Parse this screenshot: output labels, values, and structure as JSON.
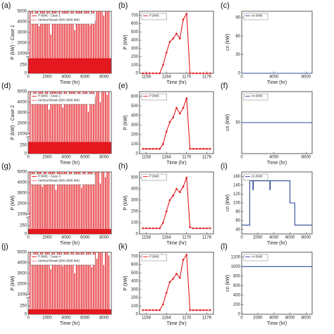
{
  "chart_data": [
    {
      "type": "spike",
      "label": "(a)",
      "xlabel": "Time (hr)",
      "ylabel": "P (kW) - Case 1",
      "legend_note": "Vertical Break (500-2900 kW)",
      "baseline": 450,
      "series": [
        {
          "name": "P (kW) - Case 1",
          "color": "#e3191f",
          "x": [
            200,
            420,
            610,
            800,
            980,
            1150,
            1320,
            1500,
            1680,
            1850,
            2020,
            2200,
            2380,
            2560,
            2740,
            2920,
            3100,
            3280,
            3460,
            3640,
            3820,
            4000,
            4180,
            4360,
            4540,
            4720,
            4900,
            5080,
            5260,
            5440,
            5620,
            5800,
            5980,
            6160,
            6340,
            6520,
            6700,
            6880,
            7060,
            7240,
            7420,
            7600,
            7780,
            7960,
            8140,
            8320,
            8500
          ],
          "values": [
            5000,
            5000,
            4200,
            5000,
            5000,
            3600,
            5000,
            5000,
            5000,
            4500,
            5000,
            5000,
            2800,
            5000,
            5000,
            5000,
            4800,
            5000,
            3900,
            5000,
            5000,
            5000,
            5000,
            4400,
            5000,
            5000,
            3200,
            5000,
            5000,
            5000,
            5000,
            4700,
            5000,
            5000,
            5000,
            3700,
            5000,
            5000,
            4100,
            5000,
            5000,
            5000,
            5000,
            4600,
            5000,
            5000,
            5000
          ]
        }
      ],
      "xlim": [
        0,
        8760
      ],
      "xticks": [
        0,
        2000,
        4000,
        6000,
        8000
      ],
      "ylim": [
        0,
        5000
      ],
      "y_break": [
        500,
        1000
      ],
      "yticks": [
        0,
        250,
        1000,
        2000,
        3000,
        4000,
        5000
      ]
    },
    {
      "type": "line",
      "label": "(b)",
      "xlabel": "Time (hr)",
      "ylabel": "P (kW)",
      "markers": true,
      "series": [
        {
          "name": "P (kW)",
          "color": "#e3191f",
          "x": [
            1157,
            1158,
            1159,
            1160,
            1161,
            1162,
            1163,
            1164,
            1165,
            1166,
            1167,
            1168,
            1169,
            1170,
            1171,
            1172,
            1173,
            1174,
            1175,
            1176,
            1177
          ],
          "values": [
            0,
            0,
            0,
            0,
            0,
            0,
            100,
            250,
            380,
            420,
            480,
            420,
            650,
            720,
            0,
            0,
            0,
            0,
            0,
            0,
            0
          ]
        }
      ],
      "xlim": [
        1156,
        1178
      ],
      "xticks": [
        1158,
        1164,
        1170,
        1176
      ],
      "ylim": [
        0,
        750
      ],
      "yticks": [
        0,
        100,
        200,
        300,
        400,
        500,
        600,
        700
      ]
    },
    {
      "type": "line",
      "label": "(c)",
      "xlabel": "Time (hr)",
      "ylabel": "cn (kW)",
      "series": [
        {
          "name": "cn (kW)",
          "color": "#2b4c9b",
          "x": [
            0,
            8760
          ],
          "values": [
            0,
            0
          ]
        }
      ],
      "xlim": [
        0,
        8760
      ],
      "xticks": [
        0,
        4000,
        8000
      ],
      "ylim": [
        0,
        100
      ],
      "yticks": [
        0,
        30,
        60,
        90
      ]
    },
    {
      "type": "spike",
      "label": "(d)",
      "xlabel": "Time (hr)",
      "ylabel": "P (kW) - Case 2",
      "legend_note": "Vertical Break (500-2900 kW)",
      "baseline": 350,
      "series": [
        {
          "name": "P (kW) - Case 2",
          "color": "#e3191f",
          "x": [
            200,
            420,
            610,
            800,
            980,
            1150,
            1320,
            1500,
            1680,
            1850,
            2020,
            2200,
            2380,
            2560,
            2740,
            2920,
            3100,
            3280,
            3460,
            3640,
            3820,
            4000,
            4180,
            4360,
            4540,
            4720,
            4900,
            5080,
            5260,
            5440,
            5620,
            5800,
            5980,
            6160,
            6340,
            6520,
            6700,
            6880,
            7060,
            7240,
            7420,
            7600,
            7780,
            7960,
            8140,
            8320,
            8500
          ],
          "values": [
            5000,
            4300,
            5000,
            5000,
            3800,
            5000,
            5000,
            5000,
            4600,
            5000,
            5000,
            3300,
            5000,
            5000,
            5000,
            5000,
            4900,
            5000,
            5000,
            3500,
            5000,
            5000,
            4200,
            5000,
            5000,
            5000,
            5000,
            3900,
            5000,
            5000,
            4800,
            5000,
            5000,
            5000,
            3100,
            5000,
            5000,
            5000,
            4500,
            5000,
            5000,
            4000,
            5000,
            5000,
            5000,
            4700,
            5000
          ]
        }
      ],
      "xlim": [
        0,
        8760
      ],
      "xticks": [
        0,
        2000,
        4000,
        6000,
        8000
      ],
      "ylim": [
        0,
        5000
      ],
      "y_break": [
        500,
        1000
      ],
      "yticks": [
        0,
        250,
        1000,
        2000,
        3000,
        4000,
        5000
      ]
    },
    {
      "type": "line",
      "label": "(e)",
      "xlabel": "Time (hr)",
      "ylabel": "P (kW)",
      "markers": true,
      "series": [
        {
          "name": "P (kW)",
          "color": "#e3191f",
          "x": [
            1157,
            1158,
            1159,
            1160,
            1161,
            1162,
            1163,
            1164,
            1165,
            1166,
            1167,
            1168,
            1169,
            1170,
            1171,
            1172,
            1173,
            1174,
            1175,
            1176,
            1177
          ],
          "values": [
            50,
            50,
            50,
            50,
            50,
            50,
            100,
            230,
            330,
            380,
            480,
            420,
            480,
            580,
            50,
            50,
            50,
            50,
            50,
            50,
            50
          ]
        }
      ],
      "xlim": [
        1156,
        1178
      ],
      "xticks": [
        1158,
        1164,
        1170,
        1176
      ],
      "ylim": [
        0,
        650
      ],
      "yticks": [
        0,
        100,
        200,
        300,
        400,
        500,
        600
      ]
    },
    {
      "type": "line",
      "label": "(f)",
      "xlabel": "Time (hr)",
      "ylabel": "cn (kW)",
      "series": [
        {
          "name": "cn (kW)",
          "color": "#2b4c9b",
          "x": [
            0,
            8760
          ],
          "values": [
            50,
            50
          ]
        }
      ],
      "xlim": [
        0,
        8760
      ],
      "xticks": [
        0,
        4000,
        8000
      ],
      "ylim": [
        0,
        100
      ],
      "yticks": [
        50
      ]
    },
    {
      "type": "spike",
      "label": "(g)",
      "xlabel": "Time (hr)",
      "ylabel": "P (kW)",
      "legend_note": "Vertical Break (500-2900 kW)",
      "baseline": 150,
      "series": [
        {
          "name": "P (kW) - Case 3",
          "color": "#e3191f",
          "x": [
            200,
            420,
            610,
            800,
            980,
            1150,
            1320,
            1500,
            1680,
            1850,
            2020,
            2200,
            2380,
            2560,
            2740,
            2920,
            3100,
            3280,
            3460,
            3640,
            3820,
            4000,
            4180,
            4360,
            4540,
            4720,
            4900,
            5080,
            5260,
            5440,
            5620,
            5800,
            5980,
            6160,
            6340,
            6520,
            6700,
            6880,
            7060,
            7240,
            7420,
            7600,
            7780,
            7960,
            8140,
            8320,
            8500
          ],
          "values": [
            5000,
            5000,
            5000,
            4100,
            5000,
            5000,
            5000,
            3600,
            5000,
            5000,
            4600,
            5000,
            5000,
            5000,
            5000,
            3300,
            5000,
            5000,
            5000,
            4900,
            5000,
            5000,
            3800,
            5000,
            5000,
            4400,
            5000,
            5000,
            5000,
            5000,
            3500,
            5000,
            5000,
            4700,
            5000,
            5000,
            5000,
            4200,
            5000,
            5000,
            5000,
            3900,
            5000,
            5000,
            4500,
            5000,
            5000
          ]
        }
      ],
      "xlim": [
        0,
        8760
      ],
      "xticks": [
        0,
        2000,
        4000,
        6000,
        8000
      ],
      "ylim": [
        0,
        5000
      ],
      "y_break": [
        500,
        1000
      ],
      "yticks": [
        0,
        250,
        1000,
        2000,
        3000,
        4000,
        5000
      ]
    },
    {
      "type": "line",
      "label": "(h)",
      "xlabel": "Time (hr)",
      "ylabel": "P (kW)",
      "markers": true,
      "series": [
        {
          "name": "P (kW)",
          "color": "#e3191f",
          "x": [
            1157,
            1158,
            1159,
            1160,
            1161,
            1162,
            1163,
            1164,
            1165,
            1166,
            1167,
            1168,
            1169,
            1170,
            1171,
            1172,
            1173,
            1174,
            1175,
            1176,
            1177
          ],
          "values": [
            50,
            50,
            50,
            50,
            50,
            50,
            100,
            200,
            300,
            340,
            400,
            370,
            420,
            500,
            60,
            50,
            50,
            50,
            50,
            50,
            50
          ]
        }
      ],
      "xlim": [
        1156,
        1178
      ],
      "xticks": [
        1158,
        1164,
        1170,
        1176
      ],
      "ylim": [
        0,
        550
      ],
      "yticks": [
        0,
        100,
        200,
        300,
        400,
        500
      ]
    },
    {
      "type": "line",
      "label": "(i)",
      "xlabel": "Time (hr)",
      "ylabel": "cn (kW)",
      "series": [
        {
          "name": "cn (kW)",
          "color": "#2b4c9b",
          "x": [
            0,
            1000,
            1000,
            1400,
            1400,
            1450,
            1450,
            3500,
            3500,
            3550,
            3550,
            6000,
            6000,
            6600,
            6600,
            8760
          ],
          "values": [
            50,
            50,
            150,
            150,
            130,
            130,
            150,
            150,
            130,
            130,
            150,
            150,
            100,
            100,
            50,
            50
          ]
        }
      ],
      "xlim": [
        0,
        8760
      ],
      "xticks": [
        0,
        2000,
        4000,
        6000,
        8000
      ],
      "ylim": [
        30,
        170
      ],
      "yticks": [
        40,
        60,
        80,
        100,
        120,
        140,
        160
      ]
    },
    {
      "type": "spike",
      "label": "(j)",
      "xlabel": "Time (hr)",
      "ylabel": "P (kW)",
      "legend_note": "Vertical Break (500-2900 kW)",
      "baseline": 150,
      "series": [
        {
          "name": "P (kW) - Case 4",
          "color": "#e3191f",
          "x": [
            200,
            420,
            610,
            800,
            980,
            1150,
            1320,
            1500,
            1680,
            1850,
            2020,
            2200,
            2380,
            2560,
            2740,
            2920,
            3100,
            3280,
            3460,
            3640,
            3820,
            4000,
            4180,
            4360,
            4540,
            4720,
            4900,
            5080,
            5260,
            5440,
            5620,
            5800,
            5980,
            6160,
            6340,
            6520,
            6700,
            6880,
            7060,
            7240,
            7420,
            7600,
            7780,
            7960,
            8140,
            8320,
            8500
          ],
          "values": [
            5000,
            4600,
            5000,
            5000,
            5000,
            3900,
            5000,
            5000,
            4300,
            5000,
            5000,
            5000,
            3400,
            5000,
            5000,
            4800,
            5000,
            5000,
            5000,
            3700,
            5000,
            5000,
            5000,
            4500,
            5000,
            5000,
            3000,
            5000,
            5000,
            4900,
            5000,
            5000,
            4100,
            5000,
            5000,
            5000,
            3600,
            5000,
            5000,
            4400,
            5000,
            5000,
            5000,
            3800,
            5000,
            5000,
            4700
          ]
        }
      ],
      "xlim": [
        0,
        8760
      ],
      "xticks": [
        0,
        2000,
        4000,
        6000,
        8000
      ],
      "ylim": [
        0,
        5000
      ],
      "y_break": [
        500,
        1000
      ],
      "yticks": [
        0,
        250,
        1000,
        2000,
        3000,
        4000,
        5000
      ]
    },
    {
      "type": "line",
      "label": "(k)",
      "xlabel": "Time (hr)",
      "ylabel": "P (kW)",
      "markers": true,
      "series": [
        {
          "name": "P (kW)",
          "color": "#e3191f",
          "x": [
            1157,
            1158,
            1159,
            1160,
            1161,
            1162,
            1163,
            1164,
            1165,
            1166,
            1167,
            1168,
            1169,
            1170,
            1171,
            1172,
            1173,
            1174,
            1175,
            1176,
            1177
          ],
          "values": [
            50,
            50,
            50,
            50,
            50,
            50,
            120,
            260,
            390,
            430,
            490,
            440,
            660,
            720,
            50,
            50,
            50,
            50,
            50,
            50,
            50
          ]
        }
      ],
      "xlim": [
        1156,
        1178
      ],
      "xticks": [
        1158,
        1164,
        1170,
        1176
      ],
      "ylim": [
        0,
        750
      ],
      "yticks": [
        0,
        100,
        200,
        300,
        400,
        500,
        600,
        700
      ]
    },
    {
      "type": "line",
      "label": "(l)",
      "xlabel": "Time (hr)",
      "ylabel": "cn (kW)",
      "series": [
        {
          "name": "cn (kW)",
          "color": "#2b4c9b",
          "x": [
            0,
            8760
          ],
          "values": [
            1000,
            1000
          ]
        }
      ],
      "xlim": [
        0,
        8760
      ],
      "xticks": [
        0,
        2000,
        4000,
        6000,
        8000
      ],
      "ylim": [
        0,
        1300
      ],
      "yticks": [
        0,
        200,
        400,
        600,
        800,
        1000,
        1200
      ]
    }
  ]
}
